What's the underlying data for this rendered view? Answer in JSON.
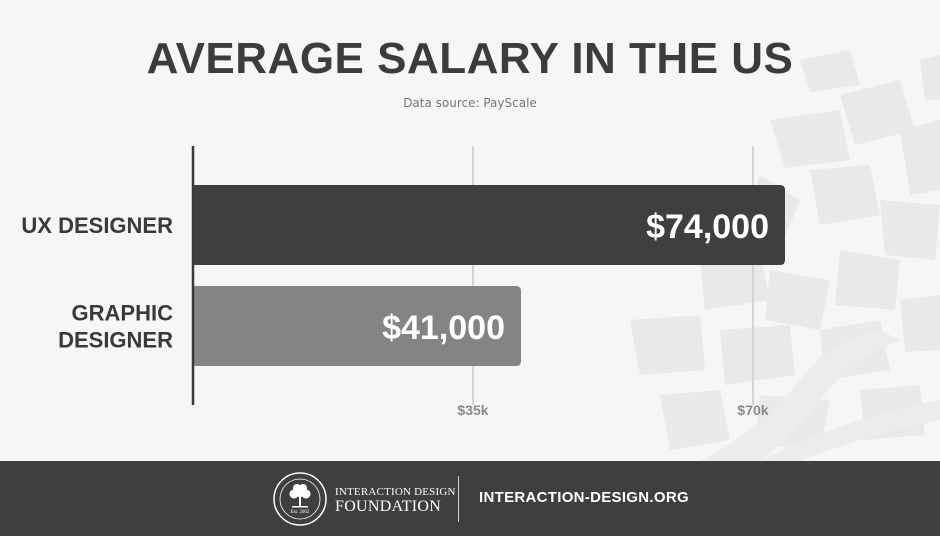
{
  "title": "AVERAGE SALARY IN THE US",
  "subtitle": "Data source: PayScale",
  "chart_data": {
    "type": "bar",
    "orientation": "horizontal",
    "categories": [
      "UX DESIGNER",
      "GRAPHIC DESIGNER"
    ],
    "values": [
      74000,
      41000
    ],
    "value_labels": [
      "$74,000",
      "$41,000"
    ],
    "bar_colors": [
      "#3f3f3f",
      "#848484"
    ],
    "x_ticks": [
      35000,
      70000
    ],
    "x_tick_labels": [
      "$35k",
      "$70k"
    ],
    "xlim": [
      0,
      70000
    ],
    "grid": true
  },
  "footer": {
    "org_line1": "INTERACTION DESIGN",
    "org_line2": "FOUNDATION",
    "seal_text": "Est. 2002",
    "site": "INTERACTION-DESIGN.ORG"
  },
  "colors": {
    "background": "#f6f6f6",
    "footer": "#3f3f3f",
    "title": "#3c3c3c"
  }
}
